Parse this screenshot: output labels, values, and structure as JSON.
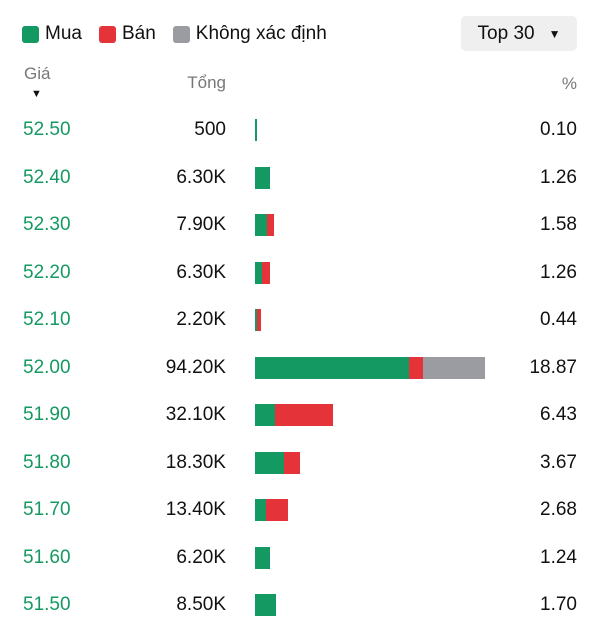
{
  "legend": {
    "buy": {
      "label": "Mua",
      "color": "#159962"
    },
    "sell": {
      "label": "Bán",
      "color": "#e4343a"
    },
    "unknown": {
      "label": "Không xác định",
      "color": "#9b9ba2"
    }
  },
  "filter": {
    "label": "Top 30"
  },
  "headers": {
    "price": "Giá",
    "total": "Tổng",
    "percent": "%"
  },
  "rows": [
    {
      "price": "52.50",
      "total": "500",
      "percent": "0.10",
      "buy": 0.1,
      "sell": 0.0,
      "unknown": 0.0
    },
    {
      "price": "52.40",
      "total": "6.30K",
      "percent": "1.26",
      "buy": 1.26,
      "sell": 0.0,
      "unknown": 0.0
    },
    {
      "price": "52.30",
      "total": "7.90K",
      "percent": "1.58",
      "buy": 0.95,
      "sell": 0.63,
      "unknown": 0.0
    },
    {
      "price": "52.20",
      "total": "6.30K",
      "percent": "1.26",
      "buy": 0.57,
      "sell": 0.69,
      "unknown": 0.0
    },
    {
      "price": "52.10",
      "total": "2.20K",
      "percent": "0.44",
      "buy": 0.08,
      "sell": 0.36,
      "unknown": 0.0
    },
    {
      "price": "52.00",
      "total": "94.20K",
      "percent": "18.87",
      "buy": 12.65,
      "sell": 1.1,
      "unknown": 5.12
    },
    {
      "price": "51.90",
      "total": "32.10K",
      "percent": "6.43",
      "buy": 1.65,
      "sell": 4.78,
      "unknown": 0.0
    },
    {
      "price": "51.80",
      "total": "18.30K",
      "percent": "3.67",
      "buy": 2.4,
      "sell": 1.27,
      "unknown": 0.0
    },
    {
      "price": "51.70",
      "total": "13.40K",
      "percent": "2.68",
      "buy": 0.87,
      "sell": 1.81,
      "unknown": 0.0
    },
    {
      "price": "51.60",
      "total": "6.20K",
      "percent": "1.24",
      "buy": 1.24,
      "sell": 0.0,
      "unknown": 0.0
    },
    {
      "price": "51.50",
      "total": "8.50K",
      "percent": "1.70",
      "buy": 1.7,
      "sell": 0.0,
      "unknown": 0.0
    }
  ]
}
